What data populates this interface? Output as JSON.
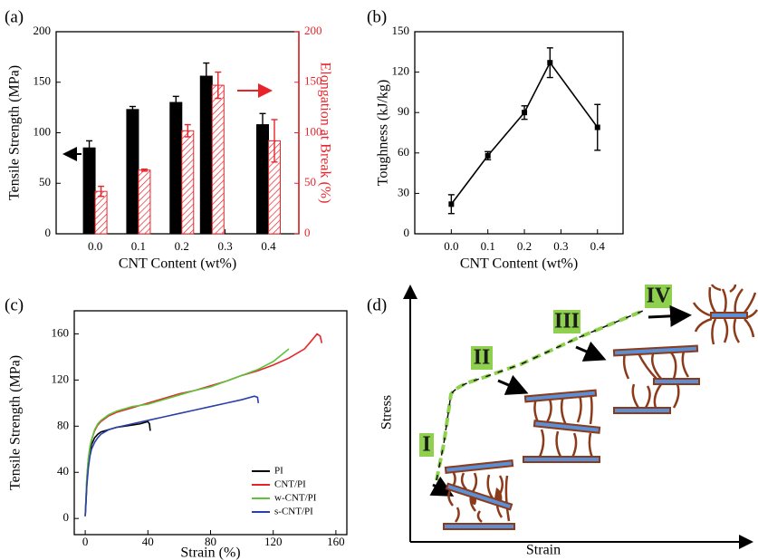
{
  "chart_data": [
    {
      "type": "bar",
      "panel_label": "(a)",
      "x_label": "CNT Content (wt%)",
      "y_label": "Tensile Strength (MPa)",
      "y2_label": "Elongation at Break (%)",
      "x": [
        0,
        0.1,
        0.2,
        0.27,
        0.4
      ],
      "xlim": [
        -0.09,
        0.47
      ],
      "xticks": [
        {
          "value": 0,
          "label": "0.0"
        },
        0.1,
        0.2,
        0.3,
        0.4
      ],
      "ylim": [
        0,
        200
      ],
      "yticks": [
        0,
        50,
        100,
        150,
        200
      ],
      "y2lim": [
        0,
        200
      ],
      "y2ticks": [
        0,
        50,
        100,
        150,
        200
      ],
      "y2_color": "#e8242b",
      "series": [
        {
          "color": "#000000",
          "values": [
            85,
            123,
            130,
            156,
            108
          ],
          "errors": [
            7,
            3,
            6,
            13,
            11
          ]
        },
        {
          "color": "#e8242b",
          "axis": "y2",
          "hatch": true,
          "values": [
            42,
            63,
            102,
            147,
            92
          ],
          "errors": [
            5,
            1,
            6,
            13,
            21
          ]
        }
      ]
    },
    {
      "type": "line",
      "panel_label": "(b)",
      "x_label": "CNT Content (wt%)",
      "y_label": "Toughness (kJ/kg)",
      "xlim": [
        -0.1,
        0.47
      ],
      "xticks": [
        {
          "value": 0,
          "label": "0.0"
        },
        0.1,
        0.2,
        0.3,
        0.4
      ],
      "ylim": [
        0,
        150
      ],
      "yticks": [
        0,
        30,
        60,
        90,
        120,
        150
      ],
      "series": [
        {
          "color": "#000000",
          "marker": "square",
          "x": [
            0,
            0.1,
            0.2,
            0.27,
            0.4
          ],
          "values": [
            22,
            58,
            90,
            127,
            79
          ],
          "errors": [
            7,
            3,
            5,
            11,
            17
          ]
        }
      ]
    },
    {
      "type": "line",
      "panel_label": "(c)",
      "x_label": "Strain (%)",
      "y_label": "Tensile Strength (MPa)",
      "xlim": [
        -7,
        167
      ],
      "xticks": [
        0,
        40,
        80,
        120,
        160
      ],
      "ylim": [
        -14,
        180
      ],
      "yticks": [
        0,
        40,
        80,
        120,
        160
      ],
      "legend": "lower right",
      "series": [
        {
          "name": "PI",
          "color": "#000000",
          "x": [
            0,
            0.5,
            1,
            2,
            3,
            4,
            6,
            8,
            10,
            15,
            20,
            25,
            30,
            35,
            40,
            41,
            41.5
          ],
          "values": [
            2,
            15,
            30,
            48,
            58,
            64,
            70,
            73,
            75,
            77,
            79,
            80,
            81,
            82,
            84,
            82,
            76
          ]
        },
        {
          "name": "CNT/PI",
          "color": "#e8242b",
          "x": [
            0,
            0.5,
            1,
            2,
            3,
            4,
            6,
            8,
            10,
            15,
            20,
            30,
            40,
            50,
            60,
            70,
            80,
            90,
            100,
            110,
            120,
            130,
            140,
            145,
            148,
            150,
            151
          ],
          "values": [
            2,
            18,
            35,
            52,
            62,
            68,
            76,
            81,
            84,
            89,
            92,
            96,
            100,
            104,
            108,
            111,
            115,
            119,
            124,
            128,
            133,
            139,
            147,
            155,
            160,
            158,
            152
          ]
        },
        {
          "name": "w-CNT/PI",
          "color": "#5cc43a",
          "x": [
            0,
            0.5,
            1,
            2,
            3,
            4,
            6,
            8,
            10,
            15,
            20,
            30,
            40,
            50,
            60,
            70,
            80,
            90,
            100,
            110,
            120,
            130
          ],
          "values": [
            2,
            18,
            35,
            52,
            62,
            68,
            77,
            82,
            85,
            90,
            93,
            97,
            99,
            103,
            107,
            111,
            114,
            119,
            124,
            129,
            136,
            147
          ]
        },
        {
          "name": "s-CNT/PI",
          "color": "#2b3fa8",
          "x": [
            0,
            0.5,
            1,
            2,
            3,
            4,
            6,
            8,
            10,
            15,
            20,
            30,
            40,
            50,
            60,
            70,
            80,
            90,
            100,
            108,
            110,
            110.5
          ],
          "values": [
            2,
            14,
            28,
            44,
            54,
            60,
            66,
            70,
            73,
            77,
            79,
            82,
            85,
            88,
            91,
            94,
            97,
            100,
            103,
            106,
            105,
            100
          ]
        }
      ]
    }
  ],
  "diagram": {
    "panel_label": "(d)",
    "y_axis_label": "Stress",
    "x_axis_label": "Strain",
    "stages": [
      "I",
      "II",
      "III",
      "IV"
    ]
  }
}
